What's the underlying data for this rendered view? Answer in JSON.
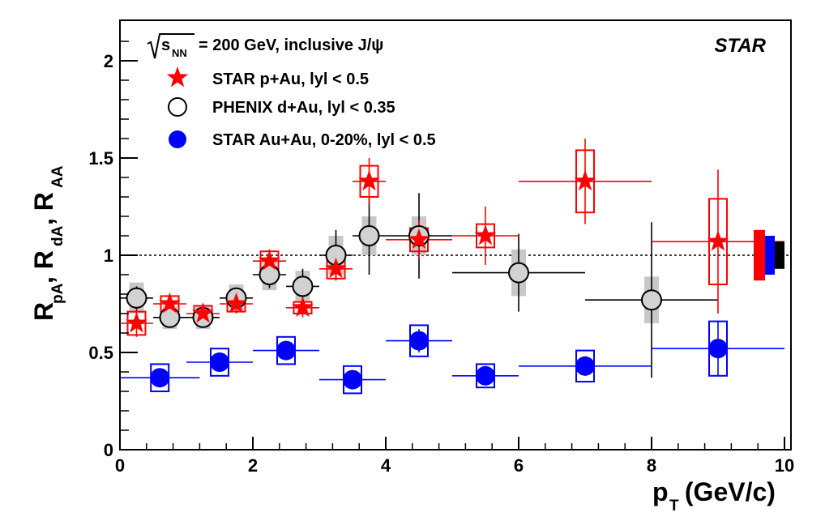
{
  "chart_data": {
    "type": "scatter",
    "title": "",
    "experiment_label": "STAR",
    "energy_label": {
      "sqrt_symbol": "s",
      "subscript": "NN",
      "text": "= 200 GeV, inclusive J/ψ"
    },
    "xlabel": {
      "main": "p",
      "sub": "T",
      "rest": " (GeV/c)"
    },
    "ylabel": {
      "parts": [
        {
          "main": "R",
          "sub": "pA"
        },
        {
          "main": ", R",
          "sub": "dA"
        },
        {
          "main": ", R",
          "sub": "AA"
        }
      ]
    },
    "xlim": [
      0,
      10
    ],
    "ylim": [
      0,
      2.2
    ],
    "x_ticks": [
      0,
      2,
      4,
      6,
      8,
      10
    ],
    "x_tick_labels": [
      "0",
      "2",
      "4",
      "6",
      "8",
      "10"
    ],
    "y_ticks": [
      0,
      0.5,
      1,
      1.5,
      2
    ],
    "y_tick_labels": [
      "0",
      "0.5",
      "1",
      "1.5",
      "2"
    ],
    "reference_line": 1,
    "legend_position": "top-left",
    "series": [
      {
        "name": "STAR p+Au, lyl < 0.5",
        "marker": "star",
        "color": "#ff0000",
        "box_style": "open",
        "points": [
          {
            "x": 0.25,
            "y": 0.65,
            "xerr": 0.25,
            "yerr": 0.07,
            "sys": 0.06
          },
          {
            "x": 0.75,
            "y": 0.75,
            "xerr": 0.25,
            "yerr": 0.05,
            "sys": 0.04
          },
          {
            "x": 1.25,
            "y": 0.7,
            "xerr": 0.25,
            "yerr": 0.05,
            "sys": 0.04
          },
          {
            "x": 1.75,
            "y": 0.75,
            "xerr": 0.25,
            "yerr": 0.05,
            "sys": 0.04
          },
          {
            "x": 2.25,
            "y": 0.97,
            "xerr": 0.25,
            "yerr": 0.06,
            "sys": 0.05
          },
          {
            "x": 2.75,
            "y": 0.73,
            "xerr": 0.25,
            "yerr": 0.05,
            "sys": 0.03
          },
          {
            "x": 3.25,
            "y": 0.93,
            "xerr": 0.25,
            "yerr": 0.06,
            "sys": 0.05
          },
          {
            "x": 3.75,
            "y": 1.38,
            "xerr": 0.25,
            "yerr": 0.12,
            "sys": 0.08
          },
          {
            "x": 4.5,
            "y": 1.08,
            "xerr": 0.5,
            "yerr": 0.1,
            "sys": 0.06
          },
          {
            "x": 5.5,
            "y": 1.1,
            "xerr": 0.5,
            "yerr": 0.15,
            "sys": 0.06
          },
          {
            "x": 7.0,
            "y": 1.38,
            "xerr": 1.0,
            "yerr": 0.22,
            "sys": 0.16
          },
          {
            "x": 9.0,
            "y": 1.07,
            "xerr": 1.0,
            "yerr": 0.37,
            "sys": 0.22
          }
        ]
      },
      {
        "name": "PHENIX d+Au, lyl < 0.35",
        "marker": "open-circle",
        "color": "#000000",
        "box_style": "shaded",
        "points": [
          {
            "x": 0.25,
            "y": 0.78,
            "xerr": 0.25,
            "yerr": 0.06,
            "sys": 0.08
          },
          {
            "x": 0.75,
            "y": 0.68,
            "xerr": 0.25,
            "yerr": 0.05,
            "sys": 0.06
          },
          {
            "x": 1.25,
            "y": 0.68,
            "xerr": 0.25,
            "yerr": 0.05,
            "sys": 0.06
          },
          {
            "x": 1.75,
            "y": 0.78,
            "xerr": 0.25,
            "yerr": 0.05,
            "sys": 0.07
          },
          {
            "x": 2.25,
            "y": 0.9,
            "xerr": 0.25,
            "yerr": 0.07,
            "sys": 0.08
          },
          {
            "x": 2.75,
            "y": 0.84,
            "xerr": 0.25,
            "yerr": 0.09,
            "sys": 0.08
          },
          {
            "x": 3.25,
            "y": 1.0,
            "xerr": 0.25,
            "yerr": 0.13,
            "sys": 0.1
          },
          {
            "x": 3.75,
            "y": 1.1,
            "xerr": 0.25,
            "yerr": 0.2,
            "sys": 0.1
          },
          {
            "x": 4.5,
            "y": 1.1,
            "xerr": 0.5,
            "yerr": 0.22,
            "sys": 0.1
          },
          {
            "x": 6.0,
            "y": 0.91,
            "xerr": 1.0,
            "yerr": 0.2,
            "sys": 0.12
          },
          {
            "x": 8.0,
            "y": 0.77,
            "xerr": 1.0,
            "yerr": 0.4,
            "sys": 0.12
          }
        ]
      },
      {
        "name": "STAR Au+Au, 0-20%, lyl < 0.5",
        "marker": "filled-circle",
        "color": "#0000ff",
        "box_style": "open",
        "points": [
          {
            "x": 0.6,
            "y": 0.37,
            "xerr": 0.6,
            "yerr": 0.04,
            "sys": 0.07
          },
          {
            "x": 1.5,
            "y": 0.45,
            "xerr": 0.5,
            "yerr": 0.05,
            "sys": 0.07
          },
          {
            "x": 2.5,
            "y": 0.51,
            "xerr": 0.5,
            "yerr": 0.05,
            "sys": 0.07
          },
          {
            "x": 3.5,
            "y": 0.36,
            "xerr": 0.5,
            "yerr": 0.05,
            "sys": 0.07
          },
          {
            "x": 4.5,
            "y": 0.56,
            "xerr": 0.5,
            "yerr": 0.06,
            "sys": 0.08
          },
          {
            "x": 5.5,
            "y": 0.38,
            "xerr": 0.5,
            "yerr": 0.04,
            "sys": 0.06
          },
          {
            "x": 7.0,
            "y": 0.43,
            "xerr": 1.0,
            "yerr": 0.05,
            "sys": 0.08
          },
          {
            "x": 9.0,
            "y": 0.52,
            "xerr": 1.0,
            "yerr": 0.14,
            "sys": 0.14
          }
        ]
      }
    ],
    "global_uncertainties": [
      {
        "series": "STAR p+Au",
        "color": "#ff0000",
        "low": 0.87,
        "high": 1.13
      },
      {
        "series": "STAR Au+Au",
        "color": "#0000ff",
        "low": 0.9,
        "high": 1.1
      },
      {
        "series": "PHENIX d+Au",
        "color": "#000000",
        "low": 0.93,
        "high": 1.07
      }
    ]
  }
}
